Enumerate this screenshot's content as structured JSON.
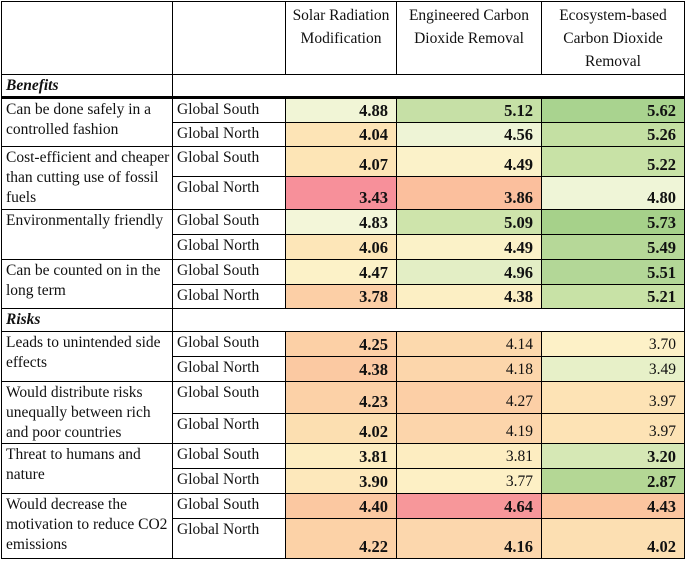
{
  "header": {
    "columns": [
      "Solar Radiation Modification",
      "Engineered Carbon Dioxide Removal",
      "Ecosystem-based Carbon Dioxide Removal"
    ]
  },
  "sections": [
    {
      "title": "Benefits",
      "items": [
        {
          "label": "Can be done safely in a controlled fashion",
          "rows": [
            {
              "region": "Global South",
              "values": [
                "4.88",
                "5.12",
                "5.62"
              ],
              "bold": [
                true,
                true,
                true
              ],
              "colors": [
                "#f1f5d6",
                "#c6e0a6",
                "#a9d38f"
              ]
            },
            {
              "region": "Global North",
              "values": [
                "4.04",
                "4.56",
                "5.26"
              ],
              "bold": [
                true,
                true,
                true
              ],
              "colors": [
                "#fde4b6",
                "#eef4d6",
                "#c4e0a3"
              ]
            }
          ]
        },
        {
          "label": "Cost-efficient and cheaper than cutting use of fossil fuels",
          "rows": [
            {
              "region": "Global South",
              "values": [
                "4.07",
                "4.49",
                "5.22"
              ],
              "bold": [
                true,
                true,
                true
              ],
              "colors": [
                "#fde5b6",
                "#fbf2c9",
                "#c8e2a6"
              ]
            },
            {
              "region": "Global North",
              "values": [
                "3.43",
                "3.86",
                "4.80"
              ],
              "bold": [
                true,
                true,
                true
              ],
              "colors": [
                "#f7909a",
                "#fbbf9d",
                "#eff5d7"
              ]
            }
          ]
        },
        {
          "label": "Environmentally friendly",
          "rows": [
            {
              "region": "Global South",
              "values": [
                "4.83",
                "5.09",
                "5.73"
              ],
              "bold": [
                true,
                true,
                true
              ],
              "colors": [
                "#f3f6d9",
                "#cee4ab",
                "#a6d18a"
              ]
            },
            {
              "region": "Global North",
              "values": [
                "4.06",
                "4.49",
                "5.49"
              ],
              "bold": [
                true,
                true,
                true
              ],
              "colors": [
                "#fde6b8",
                "#fbf2c8",
                "#b6d898"
              ]
            }
          ]
        },
        {
          "label": "Can be counted on in the long term",
          "rows": [
            {
              "region": "Global South",
              "values": [
                "4.47",
                "4.96",
                "5.51"
              ],
              "bold": [
                true,
                true,
                true
              ],
              "colors": [
                "#fcf2c8",
                "#e3eec5",
                "#b3d797"
              ]
            },
            {
              "region": "Global North",
              "values": [
                "3.78",
                "4.38",
                "5.21"
              ],
              "bold": [
                true,
                true,
                true
              ],
              "colors": [
                "#fccfa6",
                "#fcefc4",
                "#c8e2a6"
              ]
            }
          ]
        }
      ]
    },
    {
      "title": "Risks",
      "items": [
        {
          "label": "Leads to unintended side effects",
          "rows": [
            {
              "region": "Global South",
              "values": [
                "4.25",
                "4.14",
                "3.70"
              ],
              "bold": [
                true,
                false,
                false
              ],
              "colors": [
                "#fcd0a6",
                "#fcd9ad",
                "#fdf1c7"
              ]
            },
            {
              "region": "Global North",
              "values": [
                "4.38",
                "4.18",
                "3.49"
              ],
              "bold": [
                true,
                false,
                false
              ],
              "colors": [
                "#fbc9a2",
                "#fcd6ab",
                "#e7f0c8"
              ]
            }
          ]
        },
        {
          "label": "Would distribute risks unequally between rich and poor countries",
          "rows": [
            {
              "region": "Global South",
              "values": [
                "4.23",
                "4.27",
                "3.97"
              ],
              "bold": [
                true,
                false,
                false
              ],
              "colors": [
                "#fcd1a7",
                "#fccfa6",
                "#fde3b5"
              ]
            },
            {
              "region": "Global North",
              "values": [
                "4.02",
                "4.19",
                "3.97"
              ],
              "bold": [
                true,
                false,
                false
              ],
              "colors": [
                "#fcdfb1",
                "#fcd5ab",
                "#fde3b5"
              ]
            }
          ]
        },
        {
          "label": "Threat to humans and nature",
          "rows": [
            {
              "region": "Global South",
              "values": [
                "3.81",
                "3.81",
                "3.20"
              ],
              "bold": [
                true,
                false,
                true
              ],
              "colors": [
                "#fdedc1",
                "#fdedc1",
                "#d6e8b5"
              ]
            },
            {
              "region": "Global North",
              "values": [
                "3.90",
                "3.77",
                "2.87"
              ],
              "bold": [
                true,
                false,
                true
              ],
              "colors": [
                "#fde8bb",
                "#fdf0c5",
                "#b4d795"
              ]
            }
          ]
        },
        {
          "label": "Would decrease the motivation to reduce CO2 emissions",
          "rows": [
            {
              "region": "Global South",
              "values": [
                "4.40",
                "4.64",
                "4.43"
              ],
              "bold": [
                true,
                true,
                true
              ],
              "colors": [
                "#fbc8a1",
                "#f7979a",
                "#fbc59f"
              ]
            },
            {
              "region": "Global North",
              "values": [
                "4.22",
                "4.16",
                "4.02"
              ],
              "bold": [
                true,
                true,
                true
              ],
              "colors": [
                "#fcd2a7",
                "#fcd7ad",
                "#fcdfb2"
              ]
            }
          ]
        }
      ]
    }
  ]
}
